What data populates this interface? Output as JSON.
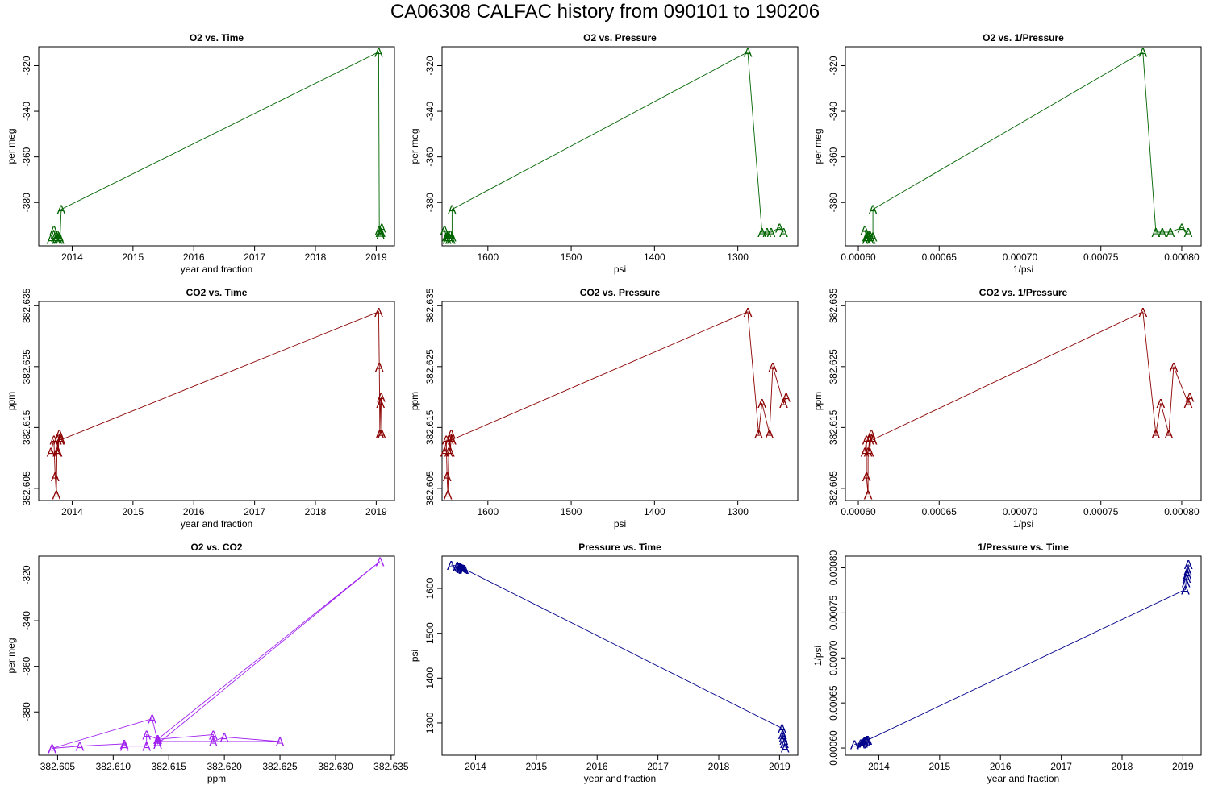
{
  "figure": {
    "title": "CA06308   CALFAC history from  090101  to  190206"
  },
  "chart_data": [
    {
      "type": "line",
      "title": "O2 vs. Time",
      "xlabel": "year and fraction",
      "ylabel": "per meg",
      "color": "#006400",
      "marker": "A",
      "xlim": [
        2013.45,
        2019.3
      ],
      "ylim": [
        -399,
        -311.7
      ],
      "xticks": [
        2014,
        2015,
        2016,
        2017,
        2018,
        2019
      ],
      "xtick_labels": [
        "2014",
        "2015",
        "2016",
        "2017",
        "2018",
        "2019"
      ],
      "yticks": [
        -320,
        -340,
        -360,
        -380
      ],
      "ytick_labels": [
        "-320",
        "-340",
        "-360",
        "-380"
      ],
      "x": [
        2013.65,
        2013.7,
        2013.72,
        2013.74,
        2013.75,
        2013.76,
        2013.77,
        2013.79,
        2013.8,
        2013.82,
        2019.04,
        2019.05,
        2019.06,
        2019.07,
        2019.08,
        2019.09
      ],
      "y": [
        -396,
        -392,
        -395,
        -396,
        -395,
        -394,
        -396,
        -395,
        -396,
        -383,
        -314,
        -392,
        -393,
        -394,
        -393,
        -391
      ]
    },
    {
      "type": "line",
      "title": "O2 vs. Pressure",
      "xlabel": "psi",
      "ylabel": "per meg",
      "color": "#006400",
      "marker": "A",
      "xlim": [
        1655,
        1228
      ],
      "ylim": [
        -399,
        -311.7
      ],
      "xticks": [
        1600,
        1500,
        1400,
        1300
      ],
      "xtick_labels": [
        "1600",
        "1500",
        "1400",
        "1300"
      ],
      "yticks": [
        -320,
        -340,
        -360,
        -380
      ],
      "ytick_labels": [
        "-320",
        "-340",
        "-360",
        "-380"
      ],
      "x": [
        1652,
        1650,
        1649,
        1648,
        1647,
        1646,
        1645,
        1644,
        1643,
        1643,
        1288,
        1271,
        1265,
        1260,
        1250,
        1245
      ],
      "y": [
        -392,
        -395,
        -396,
        -394,
        -395,
        -396,
        -394,
        -396,
        -395,
        -383,
        -314,
        -393,
        -393,
        -393,
        -391,
        -393
      ]
    },
    {
      "type": "line",
      "title": "O2 vs. 1/Pressure",
      "xlabel": "1/psi",
      "ylabel": "per meg",
      "color": "#006400",
      "marker": "A",
      "xlim": [
        0.000592,
        0.000812
      ],
      "ylim": [
        -399,
        -311.7
      ],
      "xticks": [
        0.0006,
        0.00065,
        0.0007,
        0.00075,
        0.0008
      ],
      "xtick_labels": [
        "0.00060",
        "0.00065",
        "0.00070",
        "0.00075",
        "0.00080"
      ],
      "yticks": [
        -320,
        -340,
        -360,
        -380
      ],
      "ytick_labels": [
        "-320",
        "-340",
        "-360",
        "-380"
      ],
      "x": [
        0.000604,
        0.000605,
        0.000605,
        0.000606,
        0.000606,
        0.000607,
        0.000607,
        0.000608,
        0.000609,
        0.000609,
        0.000776,
        0.000784,
        0.000788,
        0.000793,
        0.0008,
        0.000804
      ],
      "y": [
        -392,
        -395,
        -396,
        -394,
        -395,
        -396,
        -394,
        -396,
        -395,
        -383,
        -314,
        -393,
        -393,
        -393,
        -391,
        -393
      ]
    },
    {
      "type": "line",
      "title": "CO2 vs. Time",
      "xlabel": "year and fraction",
      "ylabel": "ppm",
      "color": "#8b0000",
      "marker": "A",
      "xlim": [
        2013.45,
        2019.3
      ],
      "ylim": [
        382.603,
        382.6357
      ],
      "xticks": [
        2014,
        2015,
        2016,
        2017,
        2018,
        2019
      ],
      "xtick_labels": [
        "2014",
        "2015",
        "2016",
        "2017",
        "2018",
        "2019"
      ],
      "yticks": [
        382.605,
        382.615,
        382.625,
        382.635
      ],
      "ytick_labels": [
        "382.605",
        "382.615",
        "382.625",
        "382.635"
      ],
      "x": [
        2013.65,
        2013.7,
        2013.72,
        2013.74,
        2013.75,
        2013.76,
        2013.77,
        2013.79,
        2013.8,
        2013.82,
        2019.04,
        2019.05,
        2019.06,
        2019.07,
        2019.08,
        2019.09
      ],
      "y": [
        382.611,
        382.613,
        382.607,
        382.604,
        382.611,
        382.613,
        382.611,
        382.614,
        382.613,
        382.613,
        382.634,
        382.625,
        382.614,
        382.619,
        382.62,
        382.614
      ]
    },
    {
      "type": "line",
      "title": "CO2 vs. Pressure",
      "xlabel": "psi",
      "ylabel": "ppm",
      "color": "#8b0000",
      "marker": "A",
      "xlim": [
        1655,
        1228
      ],
      "ylim": [
        382.603,
        382.6357
      ],
      "xticks": [
        1600,
        1500,
        1400,
        1300
      ],
      "xtick_labels": [
        "1600",
        "1500",
        "1400",
        "1300"
      ],
      "yticks": [
        382.605,
        382.615,
        382.625,
        382.635
      ],
      "ytick_labels": [
        "382.605",
        "382.615",
        "382.625",
        "382.635"
      ],
      "x": [
        1652,
        1650,
        1649,
        1648,
        1647,
        1646,
        1645,
        1644,
        1643,
        1643,
        1288,
        1275,
        1271,
        1262,
        1258,
        1245,
        1242
      ],
      "y": [
        382.611,
        382.613,
        382.607,
        382.604,
        382.611,
        382.613,
        382.611,
        382.614,
        382.613,
        382.613,
        382.634,
        382.614,
        382.619,
        382.614,
        382.625,
        382.619,
        382.62
      ]
    },
    {
      "type": "line",
      "title": "CO2 vs. 1/Pressure",
      "xlabel": "1/psi",
      "ylabel": "ppm",
      "color": "#8b0000",
      "marker": "A",
      "xlim": [
        0.000592,
        0.000812
      ],
      "ylim": [
        382.603,
        382.6357
      ],
      "xticks": [
        0.0006,
        0.00065,
        0.0007,
        0.00075,
        0.0008
      ],
      "xtick_labels": [
        "0.00060",
        "0.00065",
        "0.00070",
        "0.00075",
        "0.00080"
      ],
      "yticks": [
        382.605,
        382.615,
        382.625,
        382.635
      ],
      "ytick_labels": [
        "382.605",
        "382.615",
        "382.625",
        "382.635"
      ],
      "x": [
        0.000604,
        0.000605,
        0.000605,
        0.000606,
        0.000606,
        0.000607,
        0.000607,
        0.000608,
        0.000609,
        0.000609,
        0.000776,
        0.000784,
        0.000787,
        0.000792,
        0.000795,
        0.000804,
        0.000805
      ],
      "y": [
        382.611,
        382.613,
        382.607,
        382.604,
        382.611,
        382.613,
        382.611,
        382.614,
        382.613,
        382.613,
        382.634,
        382.614,
        382.619,
        382.614,
        382.625,
        382.619,
        382.62
      ]
    },
    {
      "type": "line",
      "title": "O2 vs. CO2",
      "xlabel": "ppm",
      "ylabel": "per meg",
      "color": "#a020f0",
      "marker": "A",
      "xlim": [
        382.6033,
        382.6353
      ],
      "ylim": [
        -399,
        -311.7
      ],
      "xticks": [
        382.605,
        382.61,
        382.615,
        382.62,
        382.625,
        382.63,
        382.635
      ],
      "xtick_labels": [
        "382.605",
        "382.610",
        "382.615",
        "382.620",
        "382.625",
        "382.630",
        "382.635"
      ],
      "yticks": [
        -320,
        -340,
        -360,
        -380
      ],
      "ytick_labels": [
        "-320",
        "-340",
        "-360",
        "-380"
      ],
      "x": [
        382.6045,
        382.607,
        382.611,
        382.611,
        382.613,
        382.613,
        382.614,
        382.614,
        382.634,
        382.614,
        382.619,
        382.619,
        382.62,
        382.625,
        382.614,
        382.6135,
        382.6045
      ],
      "y": [
        -396,
        -395,
        -394,
        -395,
        -395,
        -390,
        -392,
        -394,
        -314,
        -392,
        -390,
        -393,
        -391,
        -393,
        -393,
        -383,
        -396
      ]
    },
    {
      "type": "line",
      "title": "Pressure vs. Time",
      "xlabel": "year and fraction",
      "ylabel": "psi",
      "color": "#00008b",
      "marker": "A",
      "xlim": [
        2013.45,
        2019.3
      ],
      "ylim": [
        1228,
        1672
      ],
      "xticks": [
        2014,
        2015,
        2016,
        2017,
        2018,
        2019
      ],
      "xtick_labels": [
        "2014",
        "2015",
        "2016",
        "2017",
        "2018",
        "2019"
      ],
      "yticks": [
        1300,
        1400,
        1500,
        1600
      ],
      "ytick_labels": [
        "1300",
        "1400",
        "1500",
        "1600"
      ],
      "x": [
        2013.6,
        2013.7,
        2013.72,
        2013.74,
        2013.75,
        2013.76,
        2013.77,
        2013.79,
        2013.8,
        2013.82,
        2019.04,
        2019.05,
        2019.06,
        2019.07,
        2019.08,
        2019.09
      ],
      "y": [
        1652,
        1650,
        1649,
        1648,
        1647,
        1646,
        1645,
        1644,
        1643,
        1643,
        1288,
        1275,
        1268,
        1262,
        1255,
        1245
      ]
    },
    {
      "type": "line",
      "title": "1/Pressure vs. Time",
      "xlabel": "year and fraction",
      "ylabel": "1/psi",
      "color": "#00008b",
      "marker": "A",
      "xlim": [
        2013.45,
        2019.3
      ],
      "ylim": [
        0.000592,
        0.000813
      ],
      "xticks": [
        2014,
        2015,
        2016,
        2017,
        2018,
        2019
      ],
      "xtick_labels": [
        "2014",
        "2015",
        "2016",
        "2017",
        "2018",
        "2019"
      ],
      "yticks": [
        0.0006,
        0.00065,
        0.0007,
        0.00075,
        0.0008
      ],
      "ytick_labels": [
        "0.00060",
        "0.00065",
        "0.00070",
        "0.00075",
        "0.00080"
      ],
      "x": [
        2013.6,
        2013.7,
        2013.72,
        2013.74,
        2013.75,
        2013.76,
        2013.77,
        2013.79,
        2013.8,
        2013.82,
        2019.04,
        2019.05,
        2019.06,
        2019.07,
        2019.08,
        2019.09
      ],
      "y": [
        0.000604,
        0.000605,
        0.000605,
        0.000606,
        0.000606,
        0.000607,
        0.000607,
        0.000608,
        0.000609,
        0.000609,
        0.000776,
        0.000784,
        0.000789,
        0.000793,
        0.000797,
        0.000804
      ]
    }
  ]
}
